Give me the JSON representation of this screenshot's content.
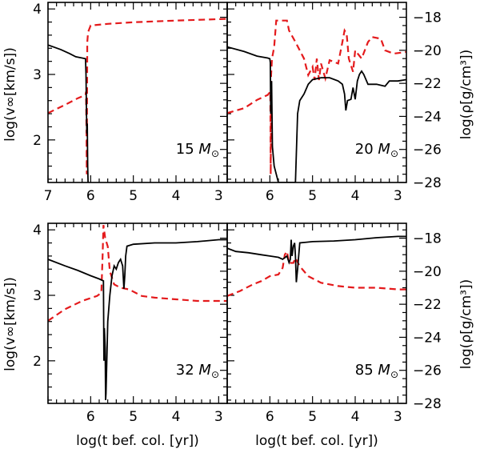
{
  "chart_data": {
    "type": "line",
    "layout": "2x2 panels",
    "xlabel": "log(t bef. col. [yr])",
    "ylabel_left": "log(v∞[km/s])",
    "ylabel_right": "log(ρ[g/cm³])",
    "xlim": [
      7,
      2.8
    ],
    "ylim_left": [
      1.35,
      4.1
    ],
    "ylim_right": [
      -28,
      -17.1
    ],
    "x_ticks": [
      7,
      6,
      5,
      4,
      3
    ],
    "left_ticks": [
      2,
      3,
      4
    ],
    "right_ticks": [
      -28,
      -26,
      -24,
      -22,
      -20,
      -18
    ],
    "series_names": [
      "v_inf (solid black, left axis)",
      "rho (dashed red, right axis)"
    ],
    "panels": [
      {
        "mass_value": "15",
        "mass_unit": "M⊙",
        "v_inf": [
          [
            7.0,
            3.45
          ],
          [
            6.7,
            3.38
          ],
          [
            6.5,
            3.32
          ],
          [
            6.35,
            3.27
          ],
          [
            6.2,
            3.25
          ],
          [
            6.12,
            3.24
          ],
          [
            6.11,
            3.0
          ],
          [
            6.1,
            2.5
          ],
          [
            6.09,
            2.1
          ],
          [
            6.08,
            2.25
          ],
          [
            6.07,
            1.6
          ],
          [
            6.06,
            1.35
          ]
        ],
        "rho": [
          [
            7.0,
            -23.8
          ],
          [
            6.6,
            -23.3
          ],
          [
            6.3,
            -22.9
          ],
          [
            6.12,
            -22.7
          ],
          [
            6.11,
            -22.5
          ],
          [
            6.1,
            -24.5
          ],
          [
            6.09,
            -27.5
          ],
          [
            6.08,
            -19.5
          ],
          [
            6.06,
            -18.9
          ],
          [
            6.0,
            -18.5
          ],
          [
            5.6,
            -18.4
          ],
          [
            5.0,
            -18.3
          ],
          [
            4.0,
            -18.2
          ],
          [
            2.8,
            -18.1
          ]
        ]
      },
      {
        "mass_value": "20",
        "mass_unit": "M⊙",
        "v_inf": [
          [
            7.0,
            3.42
          ],
          [
            6.6,
            3.35
          ],
          [
            6.3,
            3.28
          ],
          [
            6.05,
            3.25
          ],
          [
            6.0,
            3.24
          ],
          [
            5.99,
            3.18
          ],
          [
            5.98,
            2.4
          ],
          [
            5.96,
            2.9
          ],
          [
            5.94,
            1.9
          ],
          [
            5.9,
            1.6
          ],
          [
            5.8,
            1.35
          ],
          [
            5.4,
            1.35
          ],
          [
            5.35,
            2.4
          ],
          [
            5.3,
            2.6
          ],
          [
            5.2,
            2.7
          ],
          [
            5.1,
            2.85
          ],
          [
            5.0,
            2.92
          ],
          [
            4.8,
            2.95
          ],
          [
            4.6,
            2.95
          ],
          [
            4.4,
            2.9
          ],
          [
            4.3,
            2.85
          ],
          [
            4.25,
            2.7
          ],
          [
            4.22,
            2.45
          ],
          [
            4.18,
            2.6
          ],
          [
            4.1,
            2.62
          ],
          [
            4.05,
            2.8
          ],
          [
            4.0,
            2.62
          ],
          [
            3.95,
            2.9
          ],
          [
            3.9,
            3.0
          ],
          [
            3.85,
            3.05
          ],
          [
            3.8,
            3.0
          ],
          [
            3.7,
            2.85
          ],
          [
            3.5,
            2.85
          ],
          [
            3.3,
            2.82
          ],
          [
            3.2,
            2.9
          ],
          [
            3.0,
            2.9
          ],
          [
            2.8,
            2.92
          ]
        ],
        "rho": [
          [
            7.0,
            -23.8
          ],
          [
            6.6,
            -23.5
          ],
          [
            6.3,
            -23.0
          ],
          [
            6.05,
            -22.7
          ],
          [
            5.99,
            -22.5
          ],
          [
            5.98,
            -27.5
          ],
          [
            5.97,
            -21.5
          ],
          [
            5.95,
            -20.5
          ],
          [
            5.9,
            -19.8
          ],
          [
            5.85,
            -18.2
          ],
          [
            5.6,
            -18.2
          ],
          [
            5.55,
            -18.8
          ],
          [
            5.4,
            -19.5
          ],
          [
            5.2,
            -20.5
          ],
          [
            5.1,
            -21.5
          ],
          [
            5.0,
            -21.0
          ],
          [
            4.95,
            -21.8
          ],
          [
            4.9,
            -20.5
          ],
          [
            4.85,
            -21.8
          ],
          [
            4.8,
            -20.8
          ],
          [
            4.7,
            -21.7
          ],
          [
            4.6,
            -20.6
          ],
          [
            4.4,
            -20.8
          ],
          [
            4.3,
            -19.5
          ],
          [
            4.25,
            -18.8
          ],
          [
            4.2,
            -19.0
          ],
          [
            4.15,
            -20.5
          ],
          [
            4.05,
            -21.3
          ],
          [
            4.0,
            -20.0
          ],
          [
            3.85,
            -20.5
          ],
          [
            3.7,
            -19.5
          ],
          [
            3.6,
            -19.2
          ],
          [
            3.4,
            -19.3
          ],
          [
            3.3,
            -20.0
          ],
          [
            3.1,
            -20.2
          ],
          [
            2.8,
            -20.1
          ]
        ]
      },
      {
        "mass_value": "32",
        "mass_unit": "M⊙",
        "v_inf": [
          [
            7.0,
            3.55
          ],
          [
            6.6,
            3.45
          ],
          [
            6.3,
            3.38
          ],
          [
            6.0,
            3.3
          ],
          [
            5.8,
            3.25
          ],
          [
            5.7,
            3.22
          ],
          [
            5.69,
            2.0
          ],
          [
            5.68,
            2.5
          ],
          [
            5.66,
            2.2
          ],
          [
            5.65,
            1.4
          ],
          [
            5.64,
            1.5
          ],
          [
            5.6,
            2.6
          ],
          [
            5.55,
            3.0
          ],
          [
            5.5,
            3.3
          ],
          [
            5.45,
            3.45
          ],
          [
            5.4,
            3.4
          ],
          [
            5.35,
            3.5
          ],
          [
            5.3,
            3.55
          ],
          [
            5.25,
            3.45
          ],
          [
            5.22,
            3.1
          ],
          [
            5.2,
            3.3
          ],
          [
            5.18,
            3.6
          ],
          [
            5.15,
            3.75
          ],
          [
            5.0,
            3.78
          ],
          [
            4.5,
            3.8
          ],
          [
            4.0,
            3.8
          ],
          [
            3.5,
            3.82
          ],
          [
            3.0,
            3.85
          ],
          [
            2.8,
            3.85
          ]
        ],
        "rho": [
          [
            7.0,
            -23.0
          ],
          [
            6.6,
            -22.3
          ],
          [
            6.2,
            -21.8
          ],
          [
            5.85,
            -21.5
          ],
          [
            5.75,
            -21.3
          ],
          [
            5.72,
            -19.0
          ],
          [
            5.7,
            -17.2
          ],
          [
            5.66,
            -18.0
          ],
          [
            5.6,
            -18.5
          ],
          [
            5.55,
            -20.0
          ],
          [
            5.45,
            -20.8
          ],
          [
            5.3,
            -21.0
          ],
          [
            5.1,
            -21.1
          ],
          [
            4.8,
            -21.5
          ],
          [
            4.5,
            -21.6
          ],
          [
            4.0,
            -21.7
          ],
          [
            3.5,
            -21.8
          ],
          [
            3.0,
            -21.8
          ],
          [
            2.8,
            -21.8
          ]
        ]
      },
      {
        "mass_value": "85",
        "mass_unit": "M⊙",
        "v_inf": [
          [
            7.0,
            3.72
          ],
          [
            6.8,
            3.67
          ],
          [
            6.5,
            3.65
          ],
          [
            6.2,
            3.62
          ],
          [
            6.0,
            3.6
          ],
          [
            5.8,
            3.58
          ],
          [
            5.7,
            3.55
          ],
          [
            5.6,
            3.6
          ],
          [
            5.55,
            3.5
          ],
          [
            5.52,
            3.55
          ],
          [
            5.5,
            3.85
          ],
          [
            5.48,
            3.6
          ],
          [
            5.45,
            3.75
          ],
          [
            5.42,
            3.8
          ],
          [
            5.4,
            3.6
          ],
          [
            5.38,
            3.2
          ],
          [
            5.35,
            3.4
          ],
          [
            5.3,
            3.8
          ],
          [
            5.0,
            3.82
          ],
          [
            4.5,
            3.83
          ],
          [
            4.0,
            3.85
          ],
          [
            3.5,
            3.88
          ],
          [
            3.0,
            3.9
          ],
          [
            2.8,
            3.9
          ]
        ],
        "rho": [
          [
            7.0,
            -21.5
          ],
          [
            6.7,
            -21.2
          ],
          [
            6.4,
            -20.8
          ],
          [
            6.2,
            -20.6
          ],
          [
            6.0,
            -20.3
          ],
          [
            5.8,
            -20.2
          ],
          [
            5.7,
            -19.8
          ],
          [
            5.65,
            -19.0
          ],
          [
            5.6,
            -18.8
          ],
          [
            5.55,
            -19.5
          ],
          [
            5.45,
            -19.5
          ],
          [
            5.4,
            -19.2
          ],
          [
            5.3,
            -19.7
          ],
          [
            5.1,
            -20.3
          ],
          [
            4.8,
            -20.7
          ],
          [
            4.4,
            -20.9
          ],
          [
            4.0,
            -21.0
          ],
          [
            3.5,
            -21.0
          ],
          [
            3.0,
            -21.1
          ],
          [
            2.8,
            -21.1
          ]
        ]
      }
    ]
  }
}
